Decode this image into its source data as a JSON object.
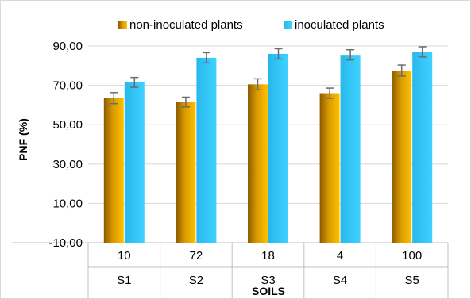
{
  "chart_data": {
    "type": "bar",
    "title": "",
    "xlabel": "SOILS",
    "ylabel": "PNF (%)",
    "ylim": [
      -10,
      90
    ],
    "yticks": [
      -10,
      10,
      30,
      50,
      70,
      90
    ],
    "ytick_labels": [
      "-10,00",
      "10,00",
      "30,00",
      "50,00",
      "70,00",
      "90,00"
    ],
    "grid": true,
    "legend_position": "top",
    "categories": [
      "S1",
      "S2",
      "S3",
      "S4",
      "S5"
    ],
    "table_row": [
      "10",
      "72",
      "18",
      "4",
      "100"
    ],
    "series": [
      {
        "name": "non-inoculated plants",
        "color": "#E8A800",
        "values": [
          63.5,
          61.5,
          70.5,
          66.0,
          77.5
        ],
        "error": [
          2.8,
          2.5,
          2.8,
          2.6,
          2.8
        ]
      },
      {
        "name": "inoculated plants",
        "color": "#33CCFF",
        "values": [
          71.5,
          84.0,
          86.0,
          85.5,
          87.0
        ],
        "error": [
          2.5,
          2.6,
          2.6,
          2.6,
          2.6
        ]
      }
    ]
  }
}
